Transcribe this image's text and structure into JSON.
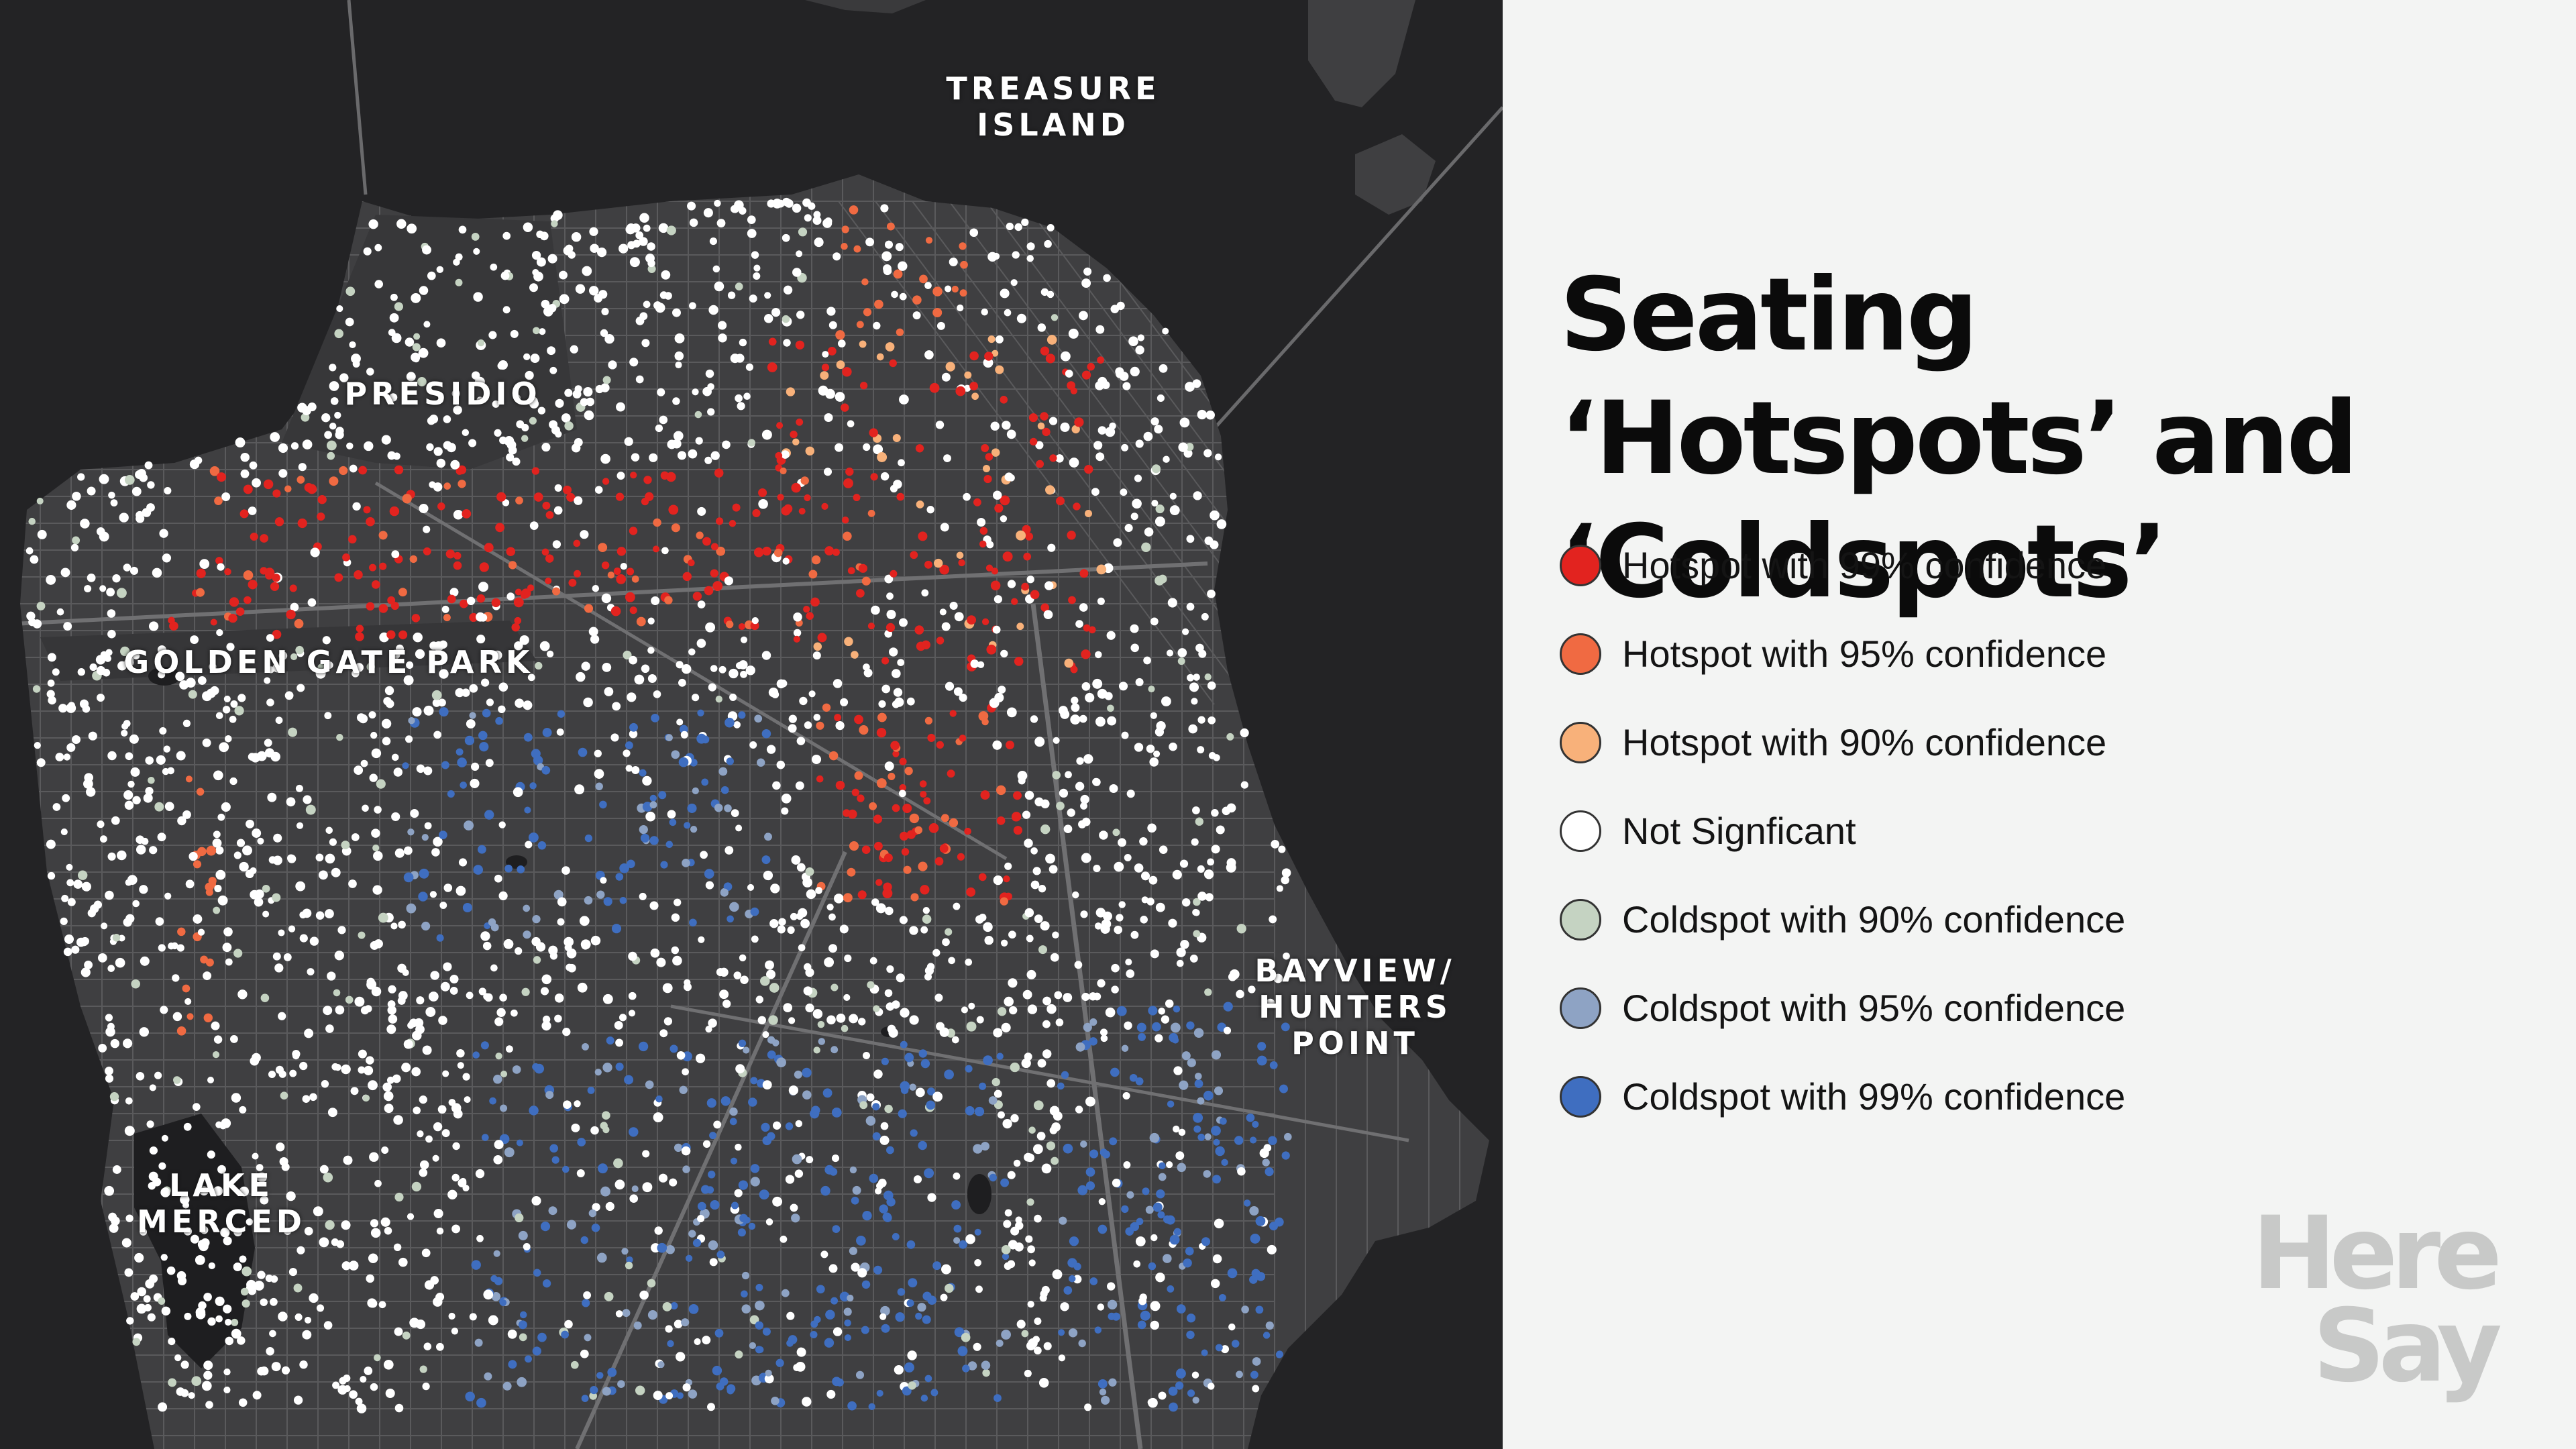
{
  "map": {
    "labels": [
      {
        "id": "treasure-island",
        "text": "TREASURE\nISLAND"
      },
      {
        "id": "presidio",
        "text": "PRESIDIO"
      },
      {
        "id": "golden-gate-park",
        "text": "GOLDEN GATE PARK"
      },
      {
        "id": "bayview-hunters-point",
        "text": "BAYVIEW/\nHUNTERS\nPOINT"
      },
      {
        "id": "lake-merced",
        "text": "LAKE\nMERCED"
      }
    ],
    "colors": {
      "water": "#232325",
      "land": "#3f3f41",
      "park": "#373739",
      "street": "#5a5a5c",
      "major_road": "#707072"
    }
  },
  "title": "Seating ‘Hotspots’ and ‘Coldspots’",
  "legend": [
    {
      "id": "hot-99",
      "label": "Hotspot with 99% confidence",
      "color": "#e2231f"
    },
    {
      "id": "hot-95",
      "label": "Hotspot with 95% confidence",
      "color": "#f06a42"
    },
    {
      "id": "hot-90",
      "label": "Hotspot with 90% confidence",
      "color": "#f8b17a"
    },
    {
      "id": "not-significant",
      "label": "Not Signficant",
      "color": "#ffffff"
    },
    {
      "id": "cold-90",
      "label": "Coldspot with 90% confidence",
      "color": "#c5d3c2"
    },
    {
      "id": "cold-95",
      "label": "Coldspot with 95% confidence",
      "color": "#8ea3c4"
    },
    {
      "id": "cold-99",
      "label": "Coldspot with 99% confidence",
      "color": "#3f6ec0"
    }
  ],
  "logo": {
    "text": "Here\nSay"
  }
}
